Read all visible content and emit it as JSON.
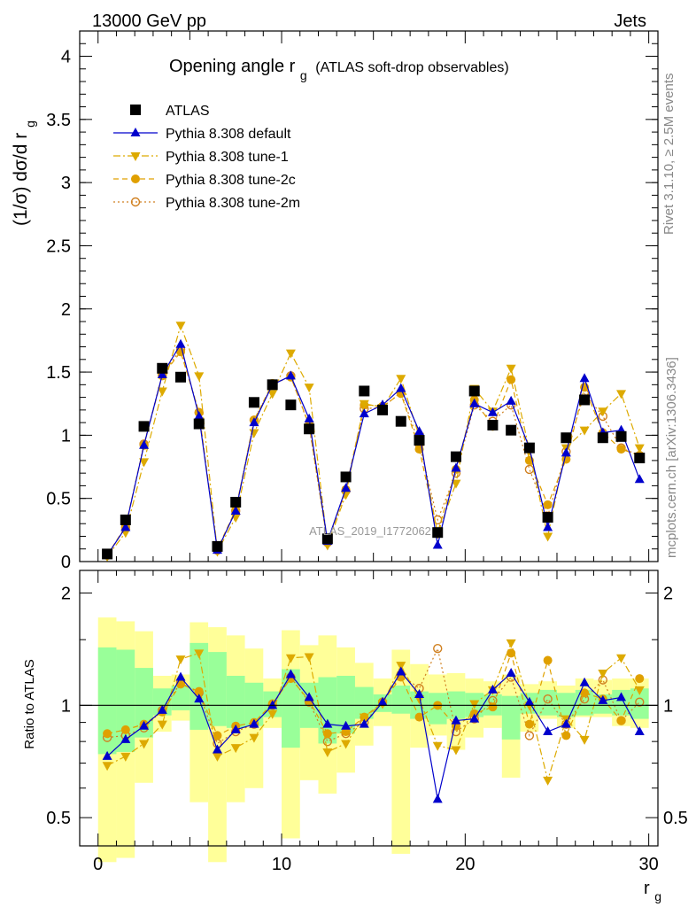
{
  "header": {
    "left": "13000 GeV pp",
    "right": "Jets",
    "title": "Opening angle r",
    "title_sub": "g",
    "title_suffix": "(ATLAS soft-drop observables)",
    "ylabel": "(1/σ) dσ/d r",
    "ylabel_sub": "g",
    "side_top": "Rivet 3.1.10, ≥ 2.5M events",
    "side_bottom": "mcplots.cern.ch [arXiv:1306.3436]",
    "watermark": "ATLAS_2019_I1772062",
    "ratio_ylabel": "Ratio to ATLAS",
    "xlabel": "r",
    "xlabel_sub": "g"
  },
  "legend": [
    {
      "label": "ATLAS",
      "marker": "square",
      "color": "#000000",
      "line": "none"
    },
    {
      "label": "Pythia 8.308 default",
      "marker": "triangle-up",
      "color": "#0000cc",
      "line": "solid"
    },
    {
      "label": "Pythia 8.308 tune-1",
      "marker": "triangle-down",
      "color": "#ddaa00",
      "line": "dashdot"
    },
    {
      "label": "Pythia 8.308 tune-2c",
      "marker": "circle",
      "color": "#e0a000",
      "line": "dashed"
    },
    {
      "label": "Pythia 8.308 tune-2m",
      "marker": "open-circle",
      "color": "#d08020",
      "line": "dotted"
    }
  ],
  "chart_data": [
    {
      "type": "scatter",
      "panel": "main",
      "x": [
        0.5,
        1.5,
        2.5,
        3.5,
        4.5,
        5.5,
        6.5,
        7.5,
        8.5,
        9.5,
        10.5,
        11.5,
        12.5,
        13.5,
        14.5,
        15.5,
        16.5,
        17.5,
        18.5,
        19.5,
        20.5,
        21.5,
        22.5,
        23.5,
        24.5,
        25.5,
        26.5,
        27.5,
        28.5,
        29.5
      ],
      "xlim": [
        -1,
        30.5
      ],
      "ylim": [
        0,
        4.2
      ],
      "xticks": [
        0,
        10,
        20,
        30
      ],
      "yticks": [
        0,
        0.5,
        1,
        1.5,
        2,
        2.5,
        3,
        3.5,
        4
      ],
      "series": [
        {
          "name": "ATLAS",
          "values": [
            0.06,
            0.33,
            1.07,
            1.53,
            1.46,
            1.09,
            0.12,
            0.47,
            1.26,
            1.4,
            1.24,
            1.05,
            0.18,
            0.67,
            1.35,
            1.2,
            1.11,
            0.96,
            0.23,
            0.83,
            1.35,
            1.08,
            1.04,
            0.9,
            0.35,
            0.98,
            1.28,
            0.98,
            0.99,
            0.82
          ]
        },
        {
          "name": "Pythia 8.308 default",
          "values": [
            0.05,
            0.27,
            0.92,
            1.48,
            1.72,
            1.15,
            0.09,
            0.4,
            1.1,
            1.4,
            1.47,
            1.13,
            0.16,
            0.58,
            1.17,
            1.24,
            1.37,
            1.03,
            0.13,
            0.74,
            1.25,
            1.18,
            1.27,
            0.9,
            0.27,
            0.86,
            1.45,
            1.02,
            1.04,
            0.65
          ]
        },
        {
          "name": "Pythia 8.308 tune-1",
          "values": [
            0.04,
            0.23,
            0.79,
            1.35,
            1.87,
            1.47,
            0.08,
            0.35,
            1.02,
            1.33,
            1.65,
            1.38,
            0.13,
            0.53,
            1.25,
            1.22,
            1.45,
            0.99,
            0.22,
            0.62,
            1.37,
            1.19,
            1.53,
            0.88,
            0.2,
            0.9,
            1.04,
            1.19,
            1.33,
            0.9
          ]
        },
        {
          "name": "Pythia 8.308 tune-2c",
          "values": [
            0.05,
            0.28,
            0.92,
            1.47,
            1.66,
            1.18,
            0.1,
            0.41,
            1.12,
            1.41,
            1.46,
            1.08,
            0.15,
            0.57,
            1.24,
            1.23,
            1.33,
            0.89,
            0.23,
            0.73,
            1.28,
            1.07,
            1.44,
            0.8,
            0.45,
            0.81,
            1.38,
            1.02,
            0.89,
            0.84
          ]
        },
        {
          "name": "Pythia 8.308 tune-2m",
          "values": [
            0.05,
            0.27,
            0.93,
            1.48,
            1.68,
            1.18,
            0.09,
            0.4,
            1.12,
            1.4,
            1.47,
            1.07,
            0.15,
            0.56,
            1.21,
            1.22,
            1.34,
            0.93,
            0.33,
            0.7,
            1.24,
            1.11,
            1.24,
            0.73,
            0.36,
            0.87,
            1.33,
            1.15,
            0.9,
            0.84
          ]
        }
      ]
    },
    {
      "type": "scatter",
      "panel": "ratio",
      "ylabel": "Ratio to ATLAS",
      "xlabel": "r_g",
      "scale": "log",
      "x": [
        0.5,
        1.5,
        2.5,
        3.5,
        4.5,
        5.5,
        6.5,
        7.5,
        8.5,
        9.5,
        10.5,
        11.5,
        12.5,
        13.5,
        14.5,
        15.5,
        16.5,
        17.5,
        18.5,
        19.5,
        20.5,
        21.5,
        22.5,
        23.5,
        24.5,
        25.5,
        26.5,
        27.5,
        28.5,
        29.5
      ],
      "xlim": [
        -1,
        30.5
      ],
      "ylim": [
        0.42,
        2.3
      ],
      "yticks": [
        0.5,
        1,
        2
      ],
      "bands": {
        "stat_sys_inner": [
          [
            0.74,
            1.43
          ],
          [
            0.75,
            1.41
          ],
          [
            0.82,
            1.26
          ],
          [
            0.94,
            1.11
          ],
          [
            0.97,
            1.13
          ],
          [
            0.86,
            1.47
          ],
          [
            0.88,
            1.39
          ],
          [
            0.87,
            1.2
          ],
          [
            0.88,
            1.15
          ],
          [
            0.93,
            1.09
          ],
          [
            0.77,
            1.25
          ],
          [
            0.87,
            1.15
          ],
          [
            0.79,
            1.19
          ],
          [
            0.84,
            1.2
          ],
          [
            0.92,
            1.12
          ],
          [
            0.96,
            1.07
          ],
          [
            0.95,
            1.13
          ],
          [
            0.92,
            1.09
          ],
          [
            0.89,
            1.08
          ],
          [
            0.92,
            1.09
          ],
          [
            0.93,
            1.08
          ],
          [
            0.94,
            1.07
          ],
          [
            0.81,
            1.06
          ],
          [
            0.95,
            1.08
          ],
          [
            0.94,
            1.1
          ],
          [
            0.93,
            1.08
          ],
          [
            0.94,
            1.1
          ],
          [
            0.95,
            1.07
          ],
          [
            0.94,
            1.1
          ],
          [
            0.92,
            1.11
          ]
        ],
        "stat_sys_outer": [
          [
            0.38,
            1.72
          ],
          [
            0.39,
            1.68
          ],
          [
            0.62,
            1.58
          ],
          [
            0.85,
            1.2
          ],
          [
            0.91,
            1.21
          ],
          [
            0.55,
            1.67
          ],
          [
            0.38,
            1.62
          ],
          [
            0.55,
            1.54
          ],
          [
            0.6,
            1.42
          ],
          [
            0.87,
            1.18
          ],
          [
            0.44,
            1.59
          ],
          [
            0.63,
            1.45
          ],
          [
            0.58,
            1.54
          ],
          [
            0.66,
            1.43
          ],
          [
            0.78,
            1.3
          ],
          [
            0.88,
            1.18
          ],
          [
            0.4,
            1.41
          ],
          [
            0.77,
            1.29
          ],
          [
            0.83,
            1.21
          ],
          [
            0.76,
            1.22
          ],
          [
            0.82,
            1.18
          ],
          [
            0.87,
            1.16
          ],
          [
            0.64,
            1.21
          ],
          [
            0.85,
            1.14
          ],
          [
            0.92,
            1.16
          ],
          [
            0.87,
            1.13
          ],
          [
            0.93,
            1.18
          ],
          [
            0.93,
            1.17
          ],
          [
            0.88,
            1.18
          ],
          [
            0.87,
            1.18
          ]
        ]
      },
      "series": [
        {
          "name": "Pythia 8.308 default",
          "values": [
            0.73,
            0.81,
            0.88,
            0.97,
            1.19,
            1.04,
            0.76,
            0.86,
            0.89,
            1.0,
            1.21,
            1.05,
            0.89,
            0.88,
            0.89,
            1.02,
            1.23,
            1.07,
            0.56,
            0.91,
            0.92,
            1.1,
            1.22,
            1.02,
            0.85,
            0.89,
            1.15,
            1.03,
            1.05,
            0.85
          ]
        },
        {
          "name": "Pythia 8.308 tune-1",
          "values": [
            0.69,
            0.73,
            0.79,
            0.89,
            1.33,
            1.38,
            0.73,
            0.77,
            0.82,
            0.95,
            1.34,
            1.35,
            0.75,
            0.79,
            0.93,
            1.01,
            1.28,
            1.04,
            0.78,
            0.76,
            1.01,
            1.1,
            1.47,
            1.0,
            0.63,
            0.92,
            0.81,
            1.22,
            1.34,
            1.1
          ]
        },
        {
          "name": "Pythia 8.308 tune-2c",
          "values": [
            0.84,
            0.86,
            0.89,
            0.96,
            1.14,
            1.09,
            0.83,
            0.88,
            0.9,
            1.01,
            1.18,
            1.03,
            0.84,
            0.85,
            0.93,
            1.02,
            1.19,
            0.93,
            1.0,
            0.88,
            0.95,
            0.99,
            1.38,
            0.89,
            1.32,
            0.83,
            1.08,
            1.04,
            0.91,
            1.18
          ]
        },
        {
          "name": "Pythia 8.308 tune-2m",
          "values": [
            0.82,
            0.83,
            0.87,
            0.97,
            1.15,
            1.08,
            0.79,
            0.85,
            0.89,
            1.0,
            1.19,
            1.02,
            0.8,
            0.84,
            0.9,
            1.02,
            1.21,
            1.11,
            1.42,
            0.85,
            0.92,
            1.03,
            1.19,
            0.83,
            1.04,
            0.89,
            1.04,
            1.17,
            0.91,
            1.02
          ]
        }
      ]
    }
  ]
}
